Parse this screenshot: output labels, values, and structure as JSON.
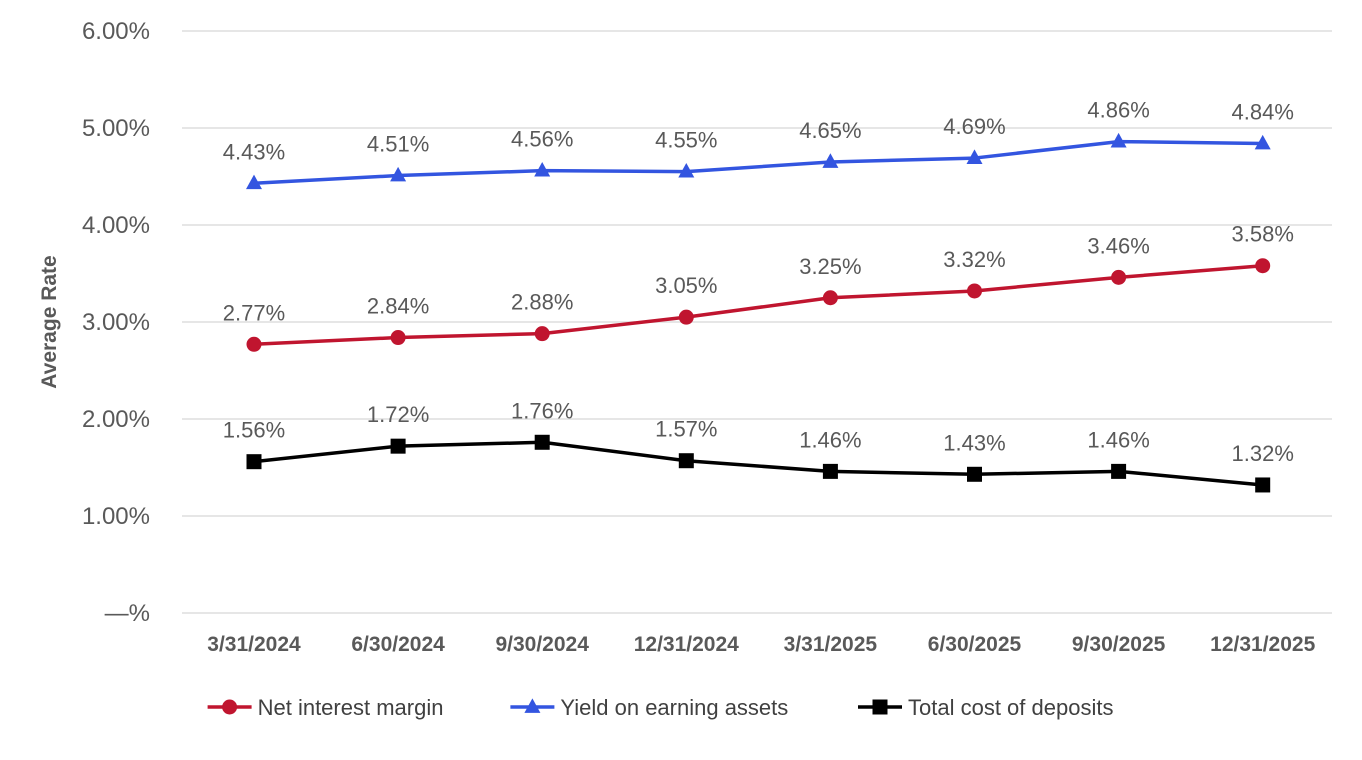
{
  "chart_data": {
    "type": "line",
    "title": "",
    "xlabel": "",
    "ylabel": "Average Rate",
    "ylim": [
      0,
      6
    ],
    "yticks": [
      {
        "value": 0,
        "label": "—%"
      },
      {
        "value": 1,
        "label": "1.00%"
      },
      {
        "value": 2,
        "label": "2.00%"
      },
      {
        "value": 3,
        "label": "3.00%"
      },
      {
        "value": 4,
        "label": "4.00%"
      },
      {
        "value": 5,
        "label": "5.00%"
      },
      {
        "value": 6,
        "label": "6.00%"
      }
    ],
    "grid": true,
    "legend_position": "bottom",
    "categories": [
      "3/31/2024",
      "6/30/2024",
      "9/30/2024",
      "12/31/2024",
      "3/31/2025",
      "6/30/2025",
      "9/30/2025",
      "12/31/2025"
    ],
    "series": [
      {
        "name": "Net interest margin",
        "color": "#c0152f",
        "marker": "circle",
        "values": [
          2.77,
          2.84,
          2.88,
          3.05,
          3.25,
          3.32,
          3.46,
          3.58
        ],
        "labels": [
          "2.77%",
          "2.84%",
          "2.88%",
          "3.05%",
          "3.25%",
          "3.32%",
          "3.46%",
          "3.58%"
        ]
      },
      {
        "name": "Yield on earning assets",
        "color": "#3355e0",
        "marker": "triangle",
        "values": [
          4.43,
          4.51,
          4.56,
          4.55,
          4.65,
          4.69,
          4.86,
          4.84
        ],
        "labels": [
          "4.43%",
          "4.51%",
          "4.56%",
          "4.55%",
          "4.65%",
          "4.69%",
          "4.86%",
          "4.84%"
        ]
      },
      {
        "name": "Total cost of deposits",
        "color": "#000000",
        "marker": "square",
        "values": [
          1.56,
          1.72,
          1.76,
          1.57,
          1.46,
          1.43,
          1.46,
          1.32
        ],
        "labels": [
          "1.56%",
          "1.72%",
          "1.76%",
          "1.57%",
          "1.46%",
          "1.43%",
          "1.46%",
          "1.32%"
        ]
      }
    ]
  }
}
